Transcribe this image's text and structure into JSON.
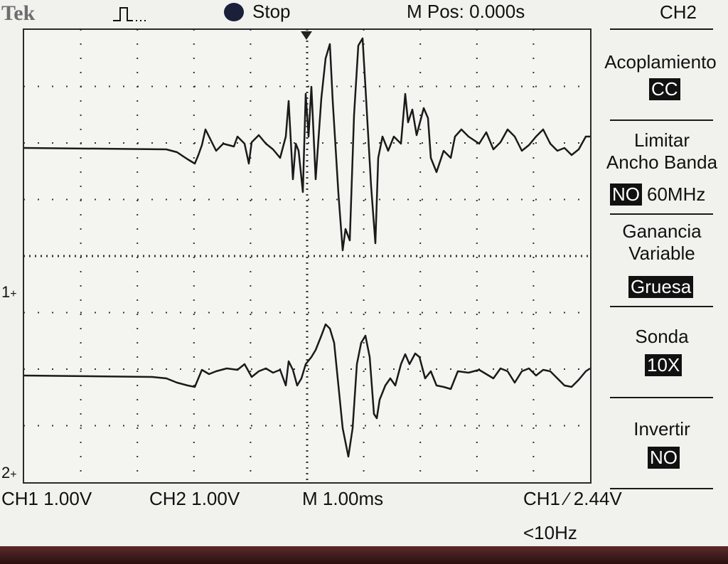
{
  "header": {
    "brand": "Tek",
    "run_state": "Stop",
    "m_pos": "M Pos: 0.000s"
  },
  "menu": {
    "channel": "CH2",
    "items": [
      {
        "label": "Acoplamiento",
        "value": "CC"
      },
      {
        "label": "Limitar\nAncho Banda",
        "value": "NO",
        "value_suffix": "60MHz"
      },
      {
        "label": "Ganancia\nVariable",
        "value": "Gruesa"
      },
      {
        "label": "Sonda",
        "value": "10X"
      },
      {
        "label": "Invertir",
        "value": "NO"
      }
    ]
  },
  "status": {
    "ch1_scale": "CH1  1.00V",
    "ch2_scale": "CH2  1.00V",
    "timebase": "M 1.00ms",
    "trigger": "CH1 ∕ 2.44V",
    "frequency": "<10Hz"
  },
  "markers": {
    "ch1": "1",
    "ch2": "2"
  }
}
